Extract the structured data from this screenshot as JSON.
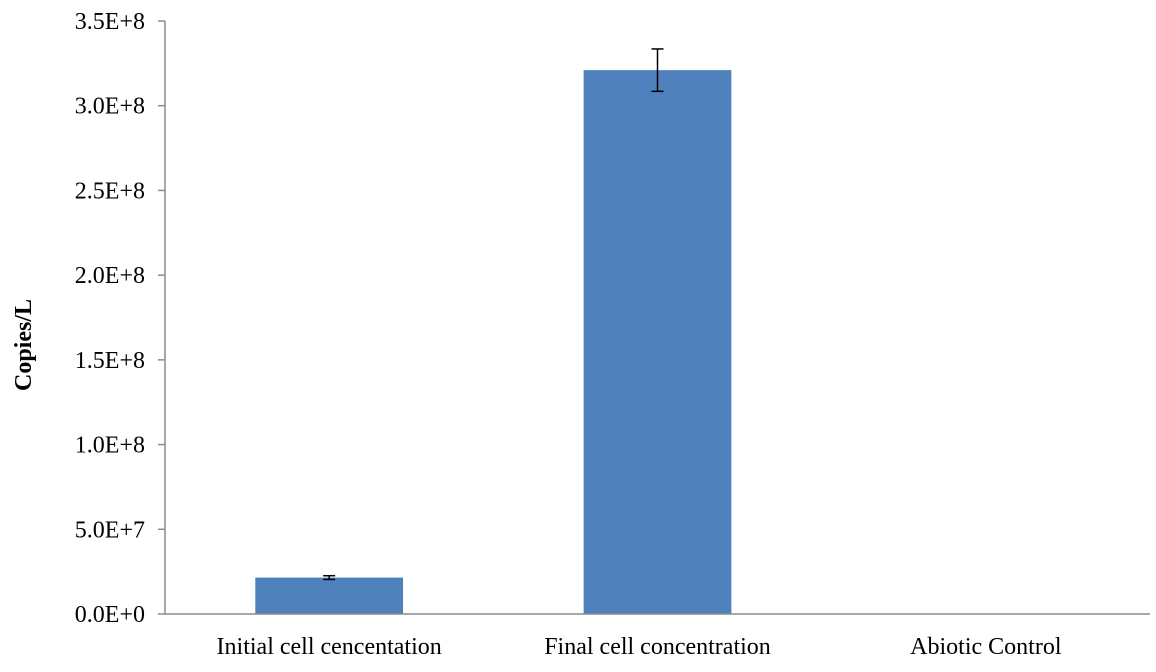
{
  "chart_data": {
    "type": "bar",
    "categories": [
      "Initial cell cencentation",
      "Final cell concentration",
      "Abiotic Control"
    ],
    "values": [
      21500000,
      321000000,
      150000
    ],
    "errors": [
      1100000,
      12500000,
      0
    ],
    "title": "",
    "xlabel": "",
    "ylabel": "Copies/L",
    "ylim": [
      0,
      350000000
    ],
    "yticks": [
      0,
      50000000,
      100000000,
      150000000,
      200000000,
      250000000,
      300000000,
      350000000
    ],
    "ytick_labels": [
      "0.0E+0",
      "5.0E+7",
      "1.0E+8",
      "1.5E+8",
      "2.0E+8",
      "2.5E+8",
      "3.0E+8",
      "3.5E+8"
    ],
    "grid": false,
    "legend": "none",
    "bar_color": "#4f81bd"
  }
}
